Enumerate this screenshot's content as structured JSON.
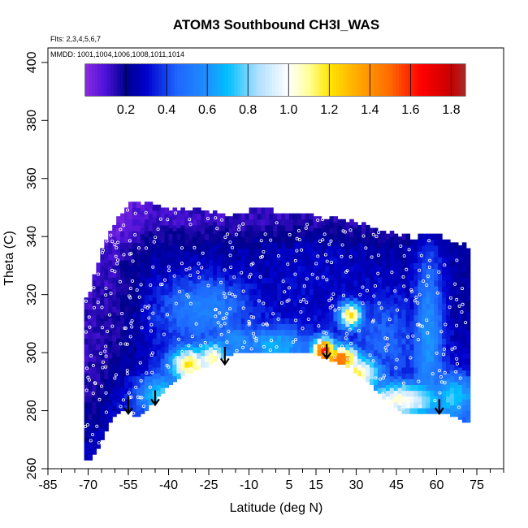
{
  "chart_data": {
    "type": "heatmap",
    "title": "ATOM3 Southbound CH3I_WAS",
    "flights_label": "Flts: 2,3,4,5,6,7",
    "dates_label": "MMDD: 1001,1004,1006,1008,1011,1014",
    "xlabel": "Latitude (deg N)",
    "ylabel": "Theta (C)",
    "xlim": [
      -85,
      85
    ],
    "ylim": [
      260,
      405
    ],
    "x_ticks": [
      -85,
      -70,
      -55,
      -40,
      -25,
      -10,
      5,
      15,
      30,
      45,
      60,
      75
    ],
    "x_minor_ticks": [
      -80,
      -75,
      -65,
      -60,
      -50,
      -45,
      -35,
      -30,
      -20,
      -15,
      -5,
      0,
      10,
      20,
      25,
      35,
      40,
      50,
      55,
      65,
      70,
      80,
      85
    ],
    "y_ticks": [
      260,
      280,
      300,
      320,
      340,
      360,
      380,
      400
    ],
    "colorbar": {
      "min": 0.0,
      "max": 1.87,
      "ticks": [
        0.2,
        0.4,
        0.6,
        0.8,
        1.0,
        1.2,
        1.4,
        1.6,
        1.8
      ],
      "stops": [
        {
          "v": 0.0,
          "color": "#8a2be2"
        },
        {
          "v": 0.1,
          "color": "#4b12d8"
        },
        {
          "v": 0.2,
          "color": "#00008b"
        },
        {
          "v": 0.3,
          "color": "#0000cd"
        },
        {
          "v": 0.45,
          "color": "#1e66ff"
        },
        {
          "v": 0.6,
          "color": "#1e90ff"
        },
        {
          "v": 0.7,
          "color": "#00bfff"
        },
        {
          "v": 0.85,
          "color": "#b0e0ff"
        },
        {
          "v": 1.0,
          "color": "#ffffff"
        },
        {
          "v": 1.1,
          "color": "#ffff99"
        },
        {
          "v": 1.2,
          "color": "#ffe600"
        },
        {
          "v": 1.35,
          "color": "#ffa500"
        },
        {
          "v": 1.5,
          "color": "#ff6a00"
        },
        {
          "v": 1.65,
          "color": "#ff0000"
        },
        {
          "v": 1.8,
          "color": "#c80000"
        },
        {
          "v": 1.87,
          "color": "#a52a2a"
        }
      ]
    },
    "coverage": {
      "latitudes": [
        -70,
        -67,
        -64,
        -61,
        -58,
        -55,
        -52,
        -49,
        -46,
        -43,
        -40,
        -37,
        -34,
        -31,
        -28,
        -25,
        -22,
        -19,
        -16,
        -13,
        -10,
        -7,
        -4,
        -1,
        2,
        5,
        8,
        11,
        14,
        17,
        20,
        23,
        26,
        29,
        32,
        35,
        38,
        41,
        44,
        47,
        50,
        53,
        56,
        59,
        62,
        65,
        68,
        71
      ],
      "theta_bottom": [
        263,
        266,
        272,
        278,
        280,
        281,
        278,
        280,
        283,
        286,
        289,
        291,
        293,
        294,
        295,
        296,
        298,
        299,
        300,
        300,
        300,
        300,
        300,
        300,
        300,
        300,
        300,
        300,
        300,
        299,
        298,
        297,
        296,
        294,
        292,
        290,
        287,
        284,
        282,
        280,
        279,
        279,
        279,
        279,
        279,
        279,
        278,
        276
      ],
      "theta_top": [
        318,
        328,
        337,
        343,
        347,
        350,
        351,
        351,
        350,
        350,
        349,
        349,
        349,
        349,
        349,
        348,
        348,
        347,
        347,
        347,
        348,
        349,
        349,
        348,
        348,
        348,
        347,
        347,
        347,
        346,
        346,
        345,
        345,
        344,
        344,
        343,
        342,
        341,
        340,
        340,
        339,
        339,
        340,
        340,
        339,
        338,
        337,
        336
      ]
    },
    "features": [
      {
        "lat": -55,
        "theta": 305,
        "lat_sigma": 5,
        "theta_sigma": 15,
        "value": 0.08
      },
      {
        "lat": -32,
        "theta": 296,
        "lat_sigma": 5,
        "theta_sigma": 4,
        "value": 1.2
      },
      {
        "lat": -24,
        "theta": 298,
        "lat_sigma": 4,
        "theta_sigma": 4,
        "value": 1.1
      },
      {
        "lat": -27,
        "theta": 315,
        "lat_sigma": 12,
        "theta_sigma": 8,
        "value": 0.55
      },
      {
        "lat": -43,
        "theta": 286,
        "lat_sigma": 6,
        "theta_sigma": 4,
        "value": 0.75
      },
      {
        "lat": -15,
        "theta": 304,
        "lat_sigma": 6,
        "theta_sigma": 4,
        "value": 0.6
      },
      {
        "lat": 0,
        "theta": 303,
        "lat_sigma": 8,
        "theta_sigma": 4,
        "value": 0.7
      },
      {
        "lat": 18,
        "theta": 301,
        "lat_sigma": 3,
        "theta_sigma": 3,
        "value": 1.7
      },
      {
        "lat": 24,
        "theta": 298,
        "lat_sigma": 5,
        "theta_sigma": 3,
        "value": 1.55
      },
      {
        "lat": 30,
        "theta": 293,
        "lat_sigma": 6,
        "theta_sigma": 4,
        "value": 1.15
      },
      {
        "lat": 28,
        "theta": 313,
        "lat_sigma": 3,
        "theta_sigma": 3,
        "value": 1.25
      },
      {
        "lat": 40,
        "theta": 305,
        "lat_sigma": 10,
        "theta_sigma": 12,
        "value": 0.45
      },
      {
        "lat": 47,
        "theta": 284,
        "lat_sigma": 10,
        "theta_sigma": 4,
        "value": 1.05
      },
      {
        "lat": 57,
        "theta": 305,
        "lat_sigma": 4,
        "theta_sigma": 22,
        "value": 0.6
      },
      {
        "lat": 66,
        "theta": 285,
        "lat_sigma": 6,
        "theta_sigma": 5,
        "value": 0.75
      },
      {
        "lat": 15,
        "theta": 325,
        "lat_sigma": 18,
        "theta_sigma": 10,
        "value": 0.3
      }
    ],
    "arrows": [
      {
        "lat": -55,
        "theta_start": 285,
        "theta_end": 279
      },
      {
        "lat": -45,
        "theta_start": 287,
        "theta_end": 282
      },
      {
        "lat": -19,
        "theta_start": 302,
        "theta_end": 296
      },
      {
        "lat": 19,
        "theta_start": 303,
        "theta_end": 298
      },
      {
        "lat": 61,
        "theta_start": 284,
        "theta_end": 279
      }
    ]
  }
}
